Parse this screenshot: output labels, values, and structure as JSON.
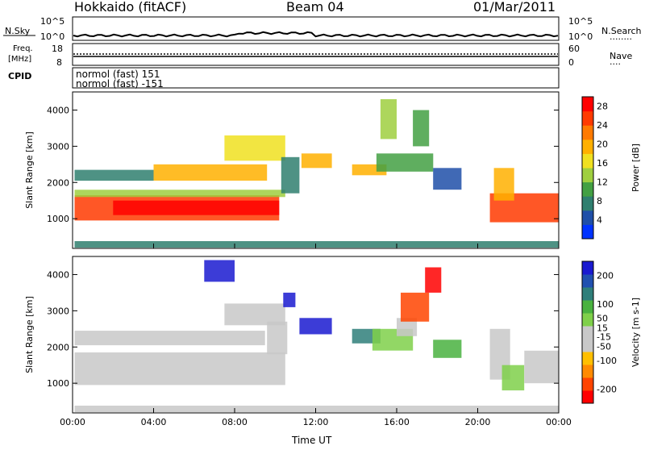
{
  "header": {
    "station": "Hokkaido (fitACF)",
    "beam": "Beam 04",
    "date": "01/Mar/2011"
  },
  "panels": {
    "nsky": {
      "label": "N.Sky",
      "ticks": [
        "10^5",
        "10^0"
      ],
      "right_ticks": [
        "10^5",
        "10^0"
      ],
      "right_label": "N.Search",
      "right_legend": "........"
    },
    "freq": {
      "label_lines": [
        "Freq.",
        "[MHz]"
      ],
      "ticks": [
        "18",
        "8"
      ],
      "right_ticks": [
        "60",
        "0"
      ],
      "right_label": "Nave",
      "right_legend": "...."
    },
    "cpid": {
      "label": "CPID",
      "lines": [
        "normol (fast) 151",
        "normol (fast) -151"
      ]
    }
  },
  "colors": {
    "power": [
      "#0033ff",
      "#1f4fa8",
      "#2f7f6f",
      "#43a043",
      "#9fcf3f",
      "#f0e020",
      "#ffb000",
      "#ff7a00",
      "#ff3a00",
      "#ff0000"
    ],
    "velocity": [
      "#ff0000",
      "#ff4400",
      "#ff8a00",
      "#ffbf00",
      "#c8c8c8",
      "#c8c8c8",
      "#7fd04a",
      "#49b23f",
      "#2f7f7a",
      "#2050b0",
      "#1a1ad0"
    ]
  },
  "chart_data": [
    {
      "type": "heatmap",
      "name": "power",
      "xlabel": "Time UT",
      "ylabel": "Slant Range [km]",
      "x_ticks": [
        "00:00",
        "04:00",
        "08:00",
        "12:00",
        "16:00",
        "20:00",
        "00:00"
      ],
      "y_ticks": [
        1000,
        2000,
        3000,
        4000
      ],
      "xlim_hours": [
        0,
        24
      ],
      "ylim_km": [
        180,
        4500
      ],
      "colorbar": {
        "label": "Power [dB]",
        "ticks": [
          28,
          24,
          20,
          16,
          12,
          8,
          4
        ],
        "range": [
          0,
          30
        ]
      },
      "regions": [
        {
          "t": [
            0.1,
            10.2
          ],
          "r": [
            950,
            1650
          ],
          "value": 24
        },
        {
          "t": [
            0.1,
            10.5
          ],
          "r": [
            1600,
            1800
          ],
          "value": 14
        },
        {
          "t": [
            2.0,
            10.2
          ],
          "r": [
            1100,
            1500
          ],
          "value": 28
        },
        {
          "t": [
            0.1,
            4.0
          ],
          "r": [
            2050,
            2350
          ],
          "value": 8
        },
        {
          "t": [
            4.0,
            9.6
          ],
          "r": [
            2050,
            2500
          ],
          "value": 18
        },
        {
          "t": [
            7.5,
            10.5
          ],
          "r": [
            2600,
            3300
          ],
          "value": 16
        },
        {
          "t": [
            10.3,
            11.2
          ],
          "r": [
            1700,
            2700
          ],
          "value": 6
        },
        {
          "t": [
            11.3,
            12.8
          ],
          "r": [
            2400,
            2800
          ],
          "value": 20
        },
        {
          "t": [
            13.8,
            15.5
          ],
          "r": [
            2200,
            2500
          ],
          "value": 18
        },
        {
          "t": [
            15.0,
            17.8
          ],
          "r": [
            2300,
            2800
          ],
          "value": 9
        },
        {
          "t": [
            15.2,
            16.0
          ],
          "r": [
            3200,
            4300
          ],
          "value": 12
        },
        {
          "t": [
            16.8,
            17.6
          ],
          "r": [
            3000,
            4000
          ],
          "value": 10
        },
        {
          "t": [
            17.8,
            19.2
          ],
          "r": [
            1800,
            2400
          ],
          "value": 5
        },
        {
          "t": [
            20.6,
            24.0
          ],
          "r": [
            900,
            1700
          ],
          "value": 26
        },
        {
          "t": [
            20.8,
            21.8
          ],
          "r": [
            1500,
            2400
          ],
          "value": 18
        },
        {
          "t": [
            0.1,
            24.0
          ],
          "r": [
            200,
            380
          ],
          "value": 6
        }
      ]
    },
    {
      "type": "heatmap",
      "name": "velocity",
      "xlabel": "Time UT",
      "ylabel": "Slant Range [km]",
      "x_ticks": [
        "00:00",
        "04:00",
        "08:00",
        "12:00",
        "16:00",
        "20:00",
        "00:00"
      ],
      "y_ticks": [
        1000,
        2000,
        3000,
        4000
      ],
      "xlim_hours": [
        0,
        24
      ],
      "ylim_km": [
        180,
        4500
      ],
      "colorbar": {
        "label": "Velocity [m s-1]",
        "ticks": [
          200,
          100,
          50,
          15,
          -15,
          -50,
          -100,
          -200
        ],
        "range": [
          -250,
          250
        ]
      },
      "regions": [
        {
          "t": [
            0.1,
            10.5
          ],
          "r": [
            950,
            1850
          ],
          "value": 0
        },
        {
          "t": [
            0.1,
            9.5
          ],
          "r": [
            2050,
            2450
          ],
          "value": 0
        },
        {
          "t": [
            7.5,
            10.5
          ],
          "r": [
            2600,
            3200
          ],
          "value": 0
        },
        {
          "t": [
            9.6,
            10.6
          ],
          "r": [
            1800,
            2700
          ],
          "value": -60
        },
        {
          "t": [
            10.4,
            11.0
          ],
          "r": [
            3100,
            3500
          ],
          "value": 220
        },
        {
          "t": [
            11.2,
            12.8
          ],
          "r": [
            2350,
            2800
          ],
          "value": 230
        },
        {
          "t": [
            6.5,
            8.0
          ],
          "r": [
            3800,
            4400
          ],
          "value": 210
        },
        {
          "t": [
            13.8,
            15.2
          ],
          "r": [
            2100,
            2500
          ],
          "value": 120
        },
        {
          "t": [
            14.8,
            16.8
          ],
          "r": [
            1900,
            2500
          ],
          "value": 60
        },
        {
          "t": [
            16.0,
            17.0
          ],
          "r": [
            2300,
            2800
          ],
          "value": -60
        },
        {
          "t": [
            16.2,
            17.6
          ],
          "r": [
            2700,
            3500
          ],
          "value": -180
        },
        {
          "t": [
            17.4,
            18.2
          ],
          "r": [
            3500,
            4200
          ],
          "value": -220
        },
        {
          "t": [
            17.8,
            19.2
          ],
          "r": [
            1700,
            2200
          ],
          "value": 80
        },
        {
          "t": [
            20.6,
            21.6
          ],
          "r": [
            1100,
            2500
          ],
          "value": 0
        },
        {
          "t": [
            21.2,
            22.3
          ],
          "r": [
            800,
            1500
          ],
          "value": 60
        },
        {
          "t": [
            22.3,
            24.0
          ],
          "r": [
            1000,
            1900
          ],
          "value": 0
        },
        {
          "t": [
            0.1,
            24.0
          ],
          "r": [
            200,
            380
          ],
          "value": -40
        }
      ]
    }
  ]
}
